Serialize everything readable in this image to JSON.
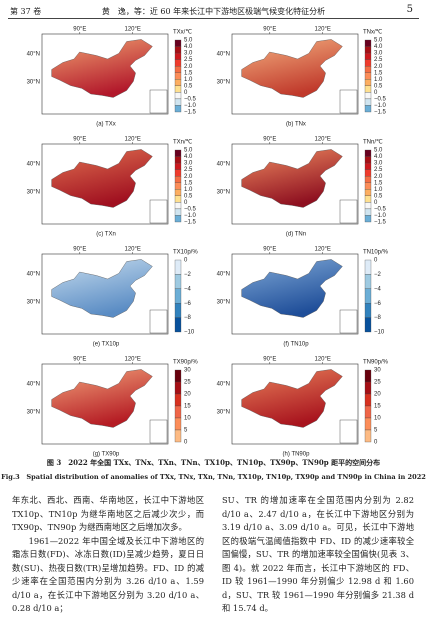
{
  "header": {
    "volume": "第 37 卷",
    "running_title": "黄　逸，等：近 60 年来长江中下游地区极端气候变化特征分析",
    "page": "5"
  },
  "axes": {
    "lon": [
      "90°E",
      "120°E"
    ],
    "lat": [
      "40°N",
      "30°N"
    ]
  },
  "panels": [
    {
      "caption": "(a) TXx",
      "unit": "TXx/℃",
      "ticks": [
        "5.0",
        "4.0",
        "3.0",
        "2.5",
        "2.0",
        "1.5",
        "1.0",
        "0.5",
        "0",
        "−0.5",
        "−1.0",
        "−1.5"
      ]
    },
    {
      "caption": "(b) TNx",
      "unit": "TNx/℃",
      "ticks": [
        "5.0",
        "4.0",
        "3.0",
        "2.5",
        "2.0",
        "1.5",
        "1.0",
        "0.5",
        "0",
        "−0.5",
        "−1.0",
        "−1.5"
      ]
    },
    {
      "caption": "(c) TXn",
      "unit": "TXn/℃",
      "ticks": [
        "5.0",
        "4.0",
        "3.0",
        "2.5",
        "2.0",
        "1.5",
        "1.0",
        "0.5",
        "0",
        "−0.5",
        "−1.0",
        "−1.5"
      ]
    },
    {
      "caption": "(d) TNn",
      "unit": "TNn/℃",
      "ticks": [
        "5.0",
        "4.0",
        "3.0",
        "2.5",
        "2.0",
        "1.5",
        "1.0",
        "0.5",
        "0",
        "−0.5",
        "−1.0",
        "−1.5"
      ]
    },
    {
      "caption": "(e) TX10p",
      "unit": "TX10p/%",
      "ticks": [
        "0",
        "−2",
        "−4",
        "−6",
        "−8",
        "−10"
      ]
    },
    {
      "caption": "(f) TN10p",
      "unit": "TN10p/%",
      "ticks": [
        "0",
        "−2",
        "−4",
        "−6",
        "−8",
        "−10"
      ]
    },
    {
      "caption": "(g) TX90p",
      "unit": "TX90p/%",
      "ticks": [
        "30",
        "25",
        "20",
        "15",
        "10",
        "5",
        "0"
      ]
    },
    {
      "caption": "(h) TN90p",
      "unit": "TN90p/%",
      "ticks": [
        "30",
        "25",
        "20",
        "15",
        "10",
        "5",
        "0"
      ]
    }
  ],
  "figure": {
    "caption_cn": "图 3　2022 年全国 TXx、TNx、TXn、TNn、TX10p、TN10p、TX90p、TN90p 距平的空间分布",
    "caption_en": "Fig.3　Spatial distribution of anomalies of TXx, TNx, TXn, TNn, TX10p, TN10p, TX90p and TN90p in China in 2022"
  },
  "body": {
    "left": [
      "年东北、西北、西南、华南地区，长江中下游地区 TX10p、TN10p 为继华南地区之后减少次少，而 TX90p、TN90p 为继西南地区之后增加次多。",
      "1961—2022 年中国全域及长江中下游地区的霜冻日数(FD)、冰冻日数(ID)呈减少趋势，夏日日数(SU)、热夜日数(TR)呈增加趋势。FD、ID 的减少速率在全国范围内分别为 3.26 d/10 a、1.59 d/10 a，在长江中下游地区分别为 3.20 d/10 a、0.28 d/10 a；"
    ],
    "right": [
      "SU、TR 的增加速率在全国范围内分别为 2.82 d/10 a、2.47 d/10 a，在长江中下游地区分别为 3.19 d/10 a、3.09 d/10 a。可见，长江中下游地区的极端气温阈值指数中 FD、ID 的减少速率较全国偏慢，SU、TR 的增加速率较全国偏快(见表 3、图 4)。就 2022 年而言，长江中下游地区的 FD、ID 较 1961—1990 年分别偏少 12.98 d 和 1.60 d，SU、TR 较 1961—1990 年分别偏多 21.38 d 和 15.74 d。"
    ]
  }
}
